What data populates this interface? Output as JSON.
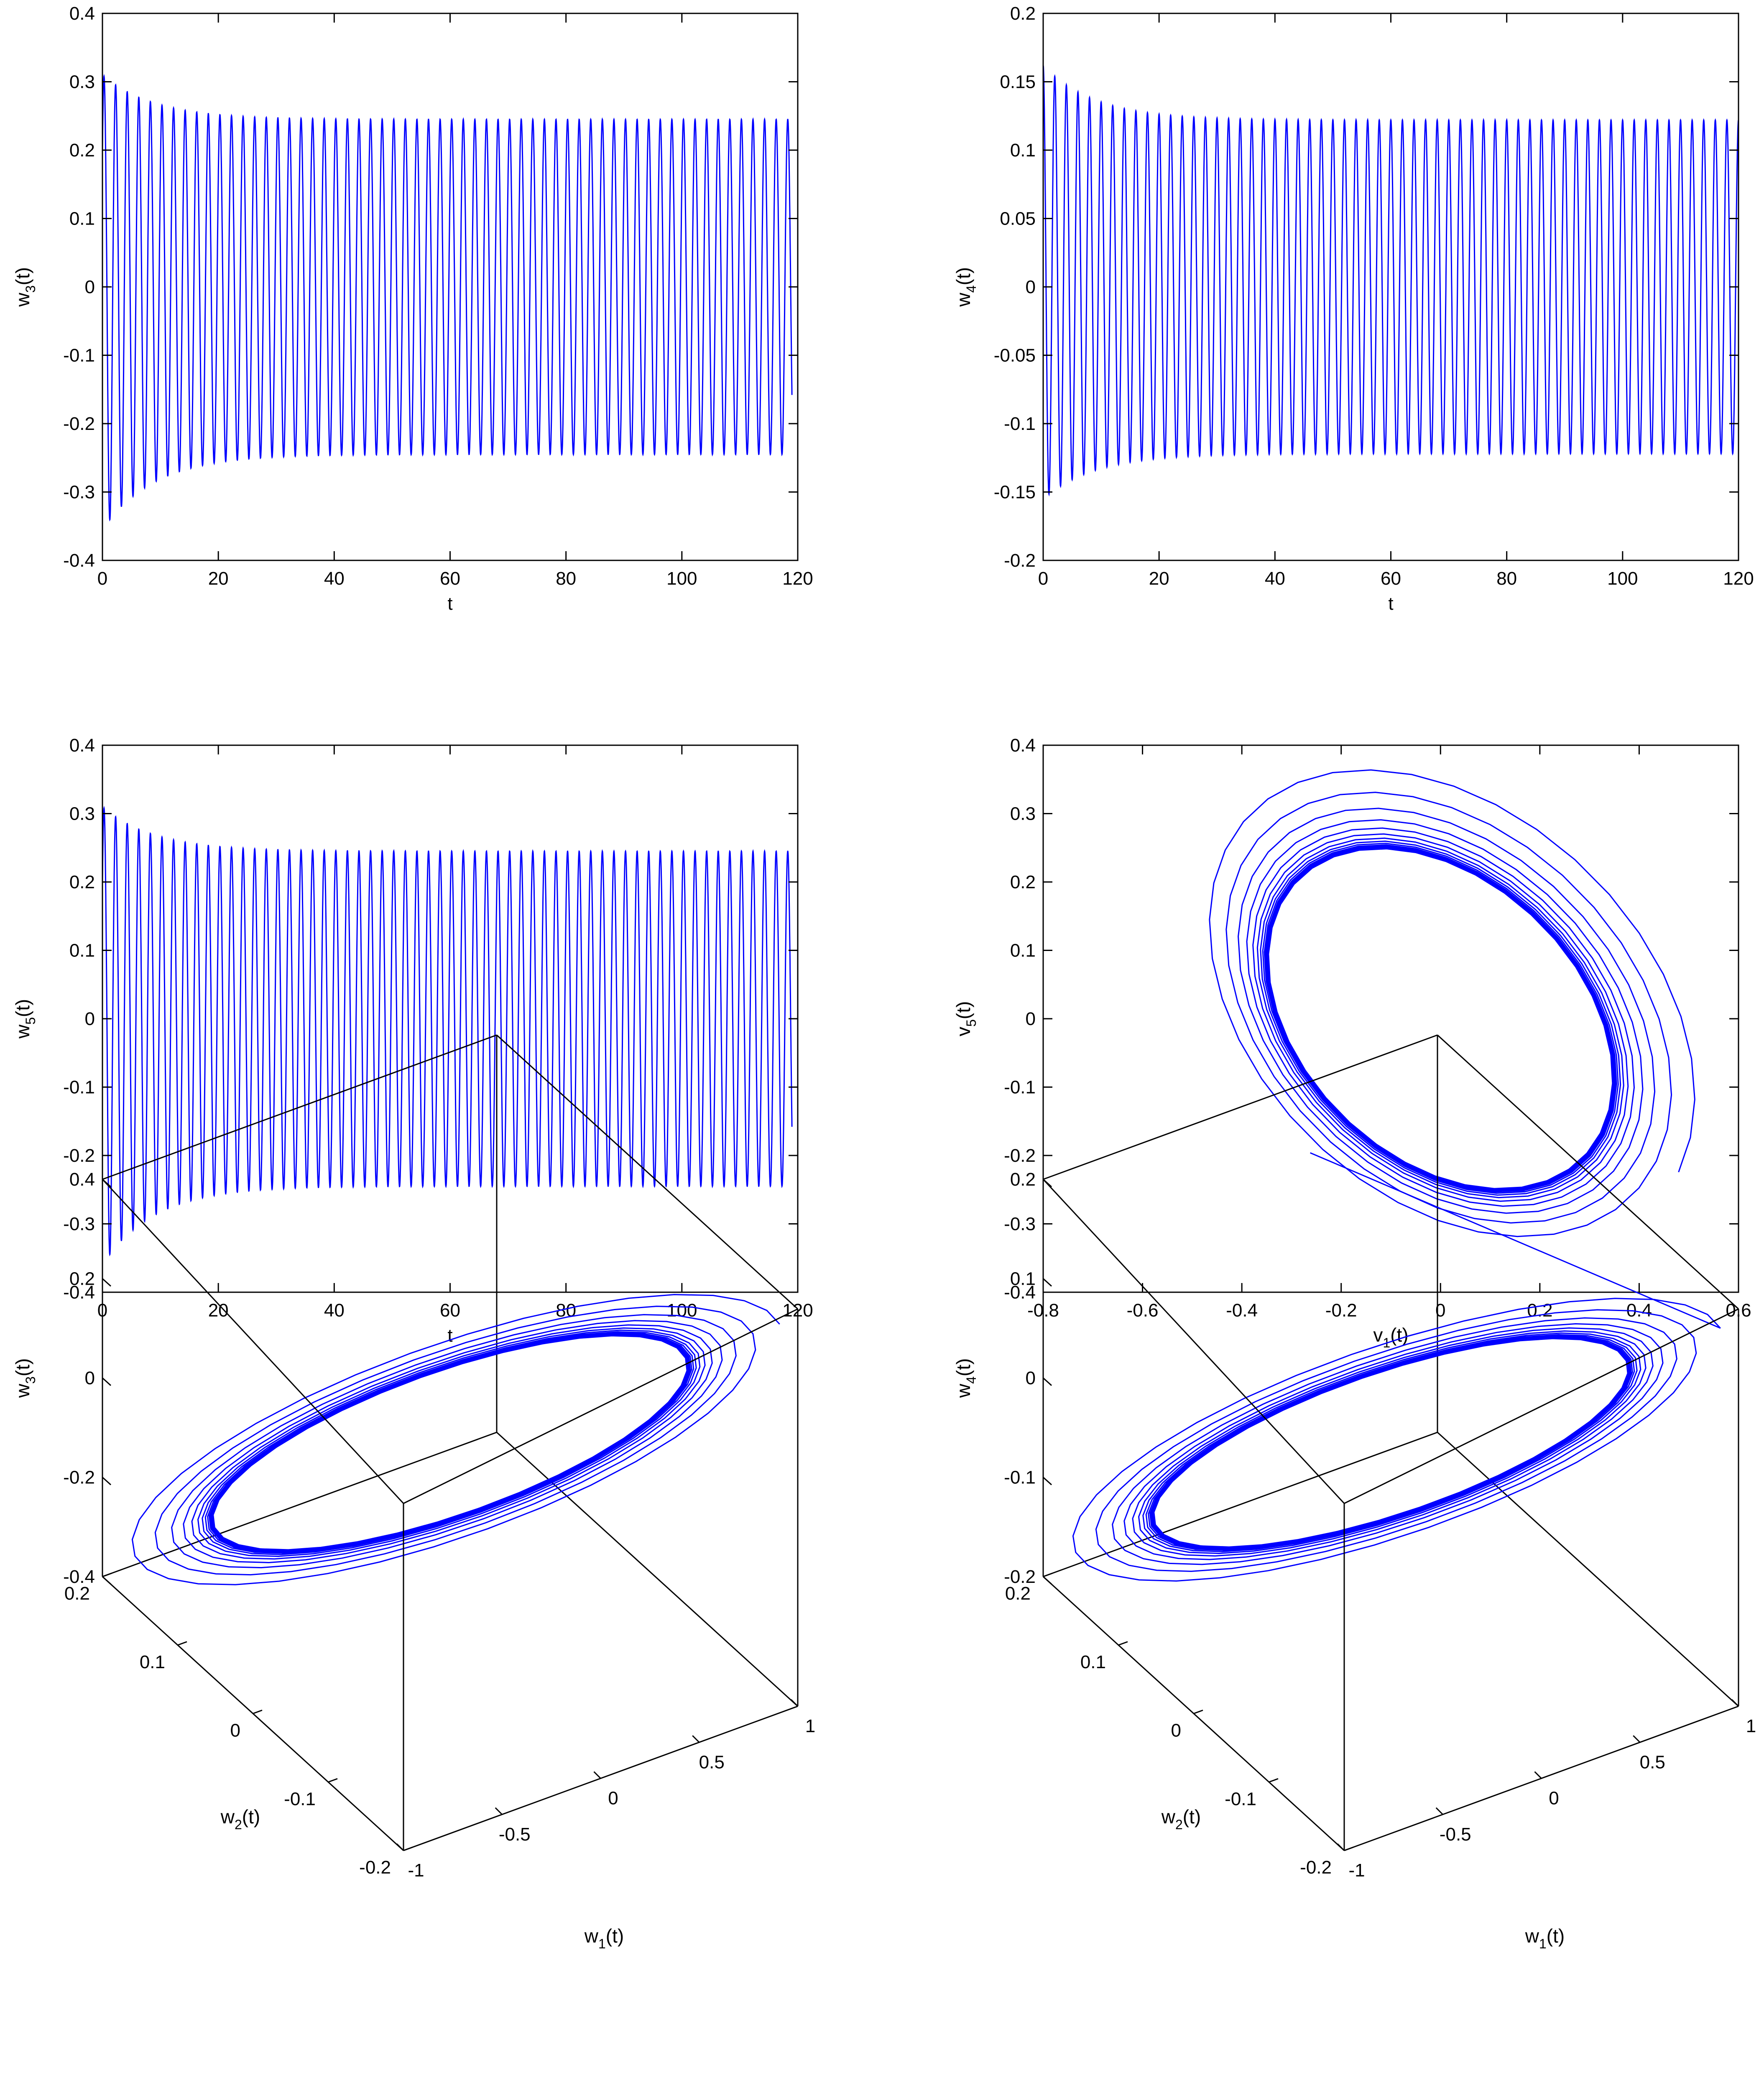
{
  "series_color": "#0000ff",
  "chart_data": [
    {
      "id": "w3",
      "type": "line",
      "xlabel": "t",
      "ylabel_base": "w",
      "ylabel_sub": "3",
      "ylabel_tail": "(t)",
      "xlim": [
        0,
        120
      ],
      "ylim": [
        -0.4,
        0.4
      ],
      "xticks": [
        "0",
        "20",
        "40",
        "60",
        "80",
        "100",
        "120"
      ],
      "yticks": [
        "-0.4",
        "-0.3",
        "-0.2",
        "-0.1",
        "0",
        "0.1",
        "0.2",
        "0.3",
        "0.4"
      ],
      "signal": {
        "t_end": 119,
        "period": 2.0,
        "initial": 0.2,
        "steady_amplitude": 0.245,
        "first_max": 0.31,
        "first_min": -0.355,
        "decay": 9
      }
    },
    {
      "id": "w4",
      "type": "line",
      "xlabel": "t",
      "ylabel_base": "w",
      "ylabel_sub": "4",
      "ylabel_tail": "(t)",
      "xlim": [
        0,
        120
      ],
      "ylim": [
        -0.2,
        0.2
      ],
      "xticks": [
        "0",
        "20",
        "40",
        "60",
        "80",
        "100",
        "120"
      ],
      "yticks": [
        "-0.2",
        "-0.15",
        "-0.1",
        "-0.05",
        "0",
        "0.05",
        "0.1",
        "0.15",
        "0.2"
      ],
      "signal": {
        "t_end": 120,
        "period": 2.0,
        "initial": 0.2,
        "steady_amplitude": 0.122,
        "first_max": 0.162,
        "first_min": -0.155,
        "decay": 9
      }
    },
    {
      "id": "w5",
      "type": "line",
      "xlabel": "t",
      "ylabel_base": "w",
      "ylabel_sub": "5",
      "ylabel_tail": "(t)",
      "xlim": [
        0,
        120
      ],
      "ylim": [
        -0.4,
        0.4
      ],
      "xticks": [
        "0",
        "20",
        "40",
        "60",
        "80",
        "100",
        "120"
      ],
      "yticks": [
        "-0.4",
        "-0.3",
        "-0.2",
        "-0.1",
        "0",
        "0.1",
        "0.2",
        "0.3",
        "0.4"
      ],
      "signal": {
        "t_end": 119,
        "period": 2.0,
        "initial": 0.2,
        "steady_amplitude": 0.245,
        "first_max": 0.31,
        "first_min": -0.36,
        "decay": 9
      }
    },
    {
      "id": "v1v5",
      "type": "line",
      "xlabel_base": "v",
      "xlabel_sub": "1",
      "xlabel_tail": "(t)",
      "ylabel_base": "v",
      "ylabel_sub": "5",
      "ylabel_tail": "(t)",
      "xlim": [
        -0.8,
        0.6
      ],
      "ylim": [
        -0.4,
        0.4
      ],
      "xticks": [
        "-0.8",
        "-0.6",
        "-0.4",
        "-0.2",
        "0",
        "0.2",
        "0.4",
        "0.6"
      ],
      "yticks": [
        "-0.4",
        "-0.3",
        "-0.2",
        "-0.1",
        "0",
        "0.1",
        "0.2",
        "0.3",
        "0.4"
      ],
      "orbit": {
        "center": [
          0,
          0
        ],
        "semi_major": 0.42,
        "semi_minor": 0.2,
        "angle_deg": -40,
        "outer_growth": 0.45,
        "turns": 22
      }
    },
    {
      "id": "w1w2w3",
      "type": "line",
      "xlabel_base": "w",
      "xlabel_sub": "1",
      "xlabel_tail": "(t)",
      "ylabel_base": "w",
      "ylabel_sub": "2",
      "ylabel_tail": "(t)",
      "zlabel_base": "w",
      "zlabel_sub": "3",
      "zlabel_tail": "(t)",
      "xlim": [
        -1,
        1
      ],
      "ylim": [
        -0.2,
        0.2
      ],
      "zlim": [
        -0.4,
        0.4
      ],
      "xticks": [
        "-1",
        "-0.5",
        "0",
        "0.5",
        "1"
      ],
      "yticks": [
        "-0.2",
        "-0.1",
        "0",
        "0.1",
        "0.2"
      ],
      "zticks": [
        "-0.4",
        "-0.2",
        "0",
        "0.2",
        "0.4"
      ],
      "orbit": {
        "w1_amplitude": 0.72,
        "w2_amplitude": 0.13,
        "w3_amplitude": 0.25,
        "outer_growth": 0.4,
        "turns": 22,
        "transient": false
      }
    },
    {
      "id": "w1w2w4",
      "type": "line",
      "xlabel_base": "w",
      "xlabel_sub": "1",
      "xlabel_tail": "(t)",
      "ylabel_base": "w",
      "ylabel_sub": "2",
      "ylabel_tail": "(t)",
      "zlabel_base": "w",
      "zlabel_sub": "4",
      "zlabel_tail": "(t)",
      "xlim": [
        -1,
        1
      ],
      "ylim": [
        -0.2,
        0.2
      ],
      "zlim": [
        -0.2,
        0.2
      ],
      "xticks": [
        "-1",
        "-0.5",
        "0",
        "0.5",
        "1"
      ],
      "yticks": [
        "-0.2",
        "-0.1",
        "0",
        "0.1",
        "0.2"
      ],
      "zticks": [
        "-0.2",
        "-0.1",
        "0",
        "0.1",
        "0.2"
      ],
      "orbit": {
        "w1_amplitude": 0.72,
        "w2_amplitude": 0.13,
        "w3_amplitude": 0.122,
        "outer_growth": 0.4,
        "turns": 22,
        "transient": true
      }
    }
  ]
}
